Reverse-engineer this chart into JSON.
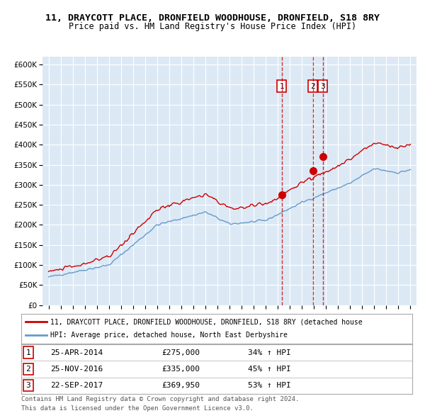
{
  "title1": "11, DRAYCOTT PLACE, DRONFIELD WOODHOUSE, DRONFIELD, S18 8RY",
  "title2": "Price paid vs. HM Land Registry's House Price Index (HPI)",
  "red_label": "11, DRAYCOTT PLACE, DRONFIELD WOODHOUSE, DRONFIELD, S18 8RY (detached house",
  "blue_label": "HPI: Average price, detached house, North East Derbyshire",
  "transactions": [
    {
      "num": 1,
      "date": "25-APR-2014",
      "date_float": 2014.32,
      "price": 275000,
      "pct": "34% ↑ HPI"
    },
    {
      "num": 2,
      "date": "25-NOV-2016",
      "date_float": 2016.9,
      "price": 335000,
      "pct": "45% ↑ HPI"
    },
    {
      "num": 3,
      "date": "22-SEP-2017",
      "date_float": 2017.73,
      "price": 369950,
      "pct": "53% ↑ HPI"
    }
  ],
  "footer1": "Contains HM Land Registry data © Crown copyright and database right 2024.",
  "footer2": "This data is licensed under the Open Government Licence v3.0.",
  "background_color": "#dce9f5",
  "red_color": "#cc0000",
  "blue_color": "#6699cc",
  "ylim": [
    0,
    620000
  ],
  "yticks": [
    0,
    50000,
    100000,
    150000,
    200000,
    250000,
    300000,
    350000,
    400000,
    450000,
    500000,
    550000,
    600000
  ],
  "xlim_start": 1994.5,
  "xlim_end": 2025.5
}
